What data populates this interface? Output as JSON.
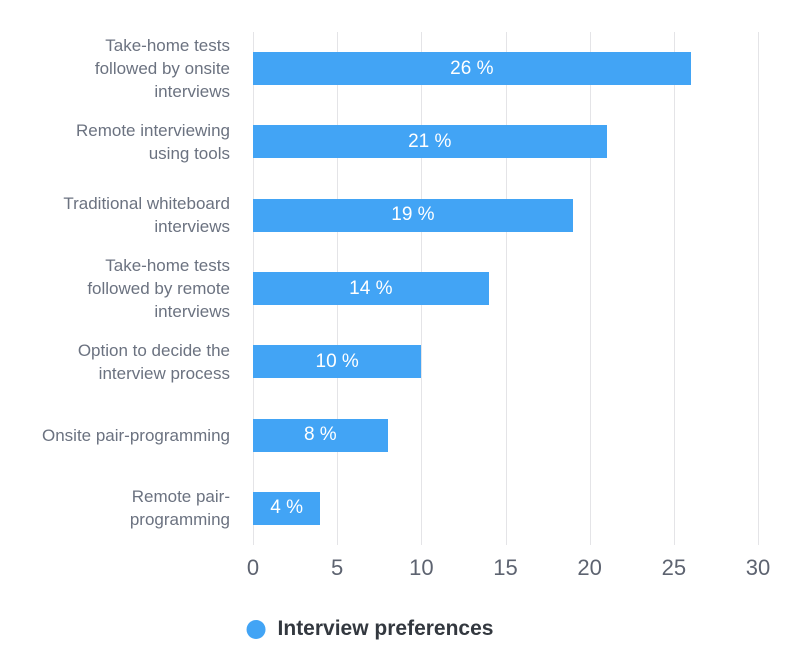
{
  "chart_data": {
    "type": "bar",
    "orientation": "horizontal",
    "title": "",
    "categories": [
      "Take-home tests\nfollowed by onsite\ninterviews",
      "Remote interviewing\nusing tools",
      "Traditional whiteboard\ninterviews",
      "Take-home tests\nfollowed by remote\ninterviews",
      "Option to decide the\ninterview process",
      "Onsite pair-programming",
      "Remote pair-\nprogramming"
    ],
    "values": [
      26,
      21,
      19,
      14,
      10,
      8,
      4
    ],
    "value_labels": [
      "26 %",
      "21 %",
      "19 %",
      "14 %",
      "10 %",
      "8 %",
      "4 %"
    ],
    "xlabel": "",
    "ylabel": "",
    "xlim": [
      0,
      30
    ],
    "xticks": [
      0,
      5,
      10,
      15,
      20,
      25,
      30
    ],
    "xtick_labels": [
      "0",
      "5",
      "10",
      "15",
      "20",
      "25",
      "30"
    ],
    "grid": "vertical",
    "legend": "Interview preferences",
    "legend_position": "bottom-center",
    "colors": {
      "bar": "#42a4f5",
      "bar_label": "#ffffff",
      "category_label": "#6b7280",
      "tick_label": "#5d6370",
      "gridline": "#e4e4e7",
      "legend_dot": "#42a4f5",
      "legend_text": "#33383f",
      "background": "#ffffff"
    }
  }
}
